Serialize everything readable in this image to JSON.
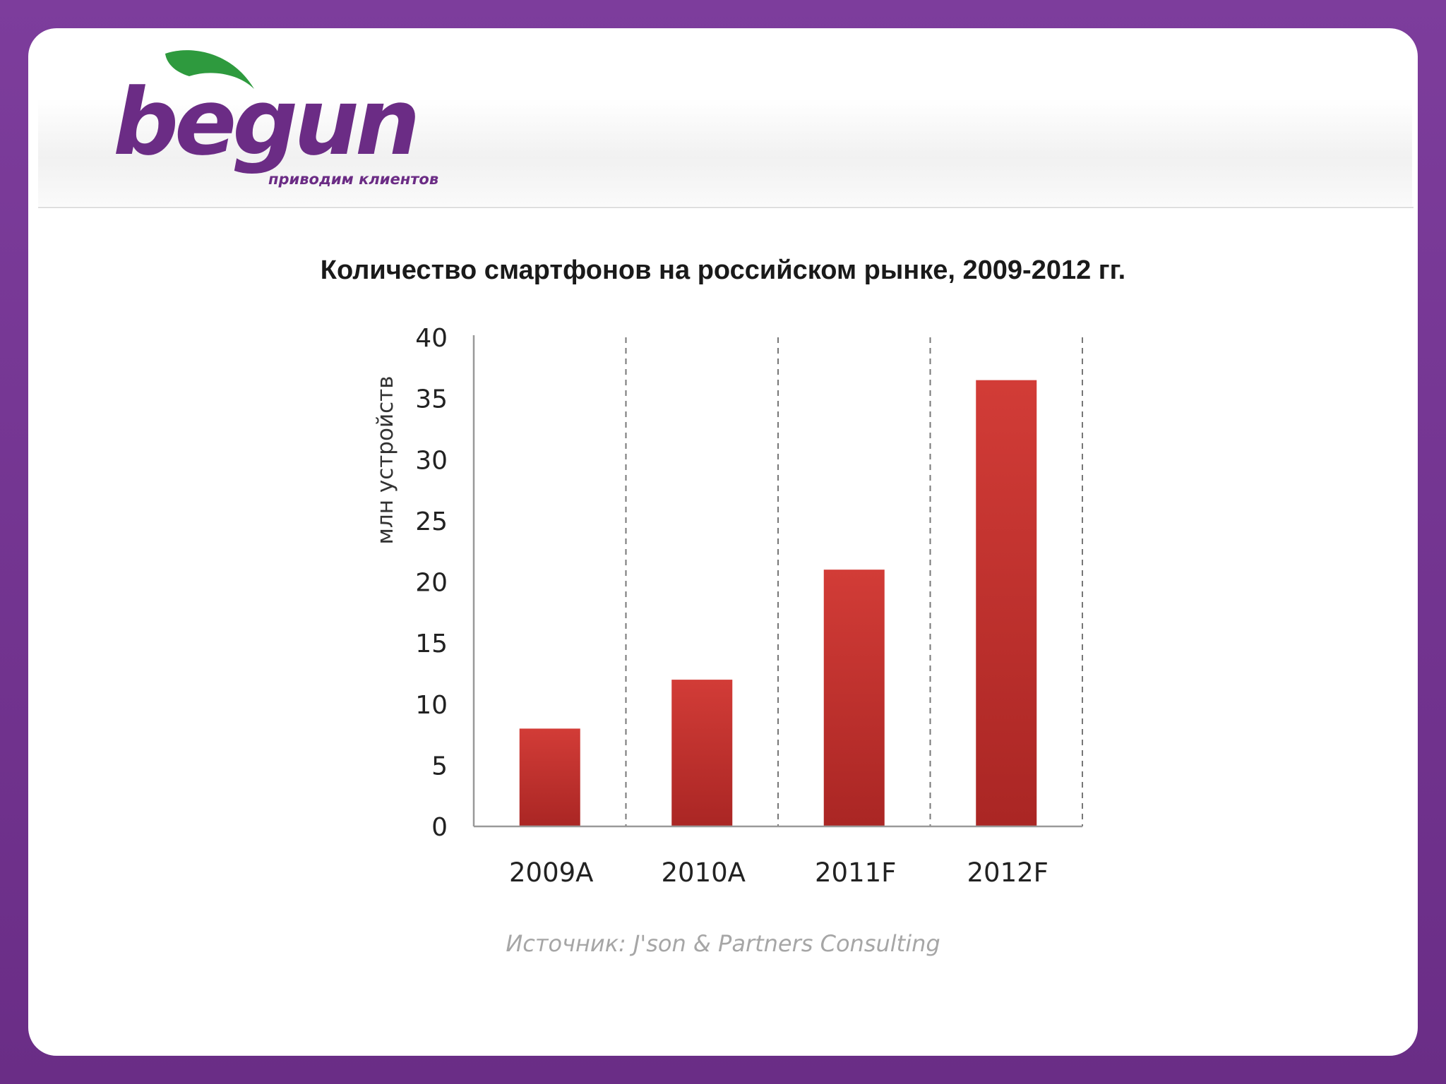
{
  "logo": {
    "wordmark": "begun",
    "tagline": "приводим клиентов"
  },
  "chart_data": {
    "type": "bar",
    "title": "Количество смартфонов на российском рынке, 2009-2012 гг.",
    "ylabel": "млн устройств",
    "xlabel": "",
    "categories": [
      "2009A",
      "2010A",
      "2011F",
      "2012F"
    ],
    "values": [
      8,
      12,
      21,
      36.5
    ],
    "ylim": [
      0,
      40
    ],
    "yticks": [
      0,
      5,
      10,
      15,
      20,
      25,
      30,
      35,
      40
    ],
    "grid": "vertical dashed separators",
    "bar_color": "#c8332f",
    "source": "Источник: J'son & Partners Consulting"
  },
  "colors": {
    "frame": "#7a3a98",
    "brand": "#6b2c85",
    "leaf": "#2e9a3e"
  }
}
